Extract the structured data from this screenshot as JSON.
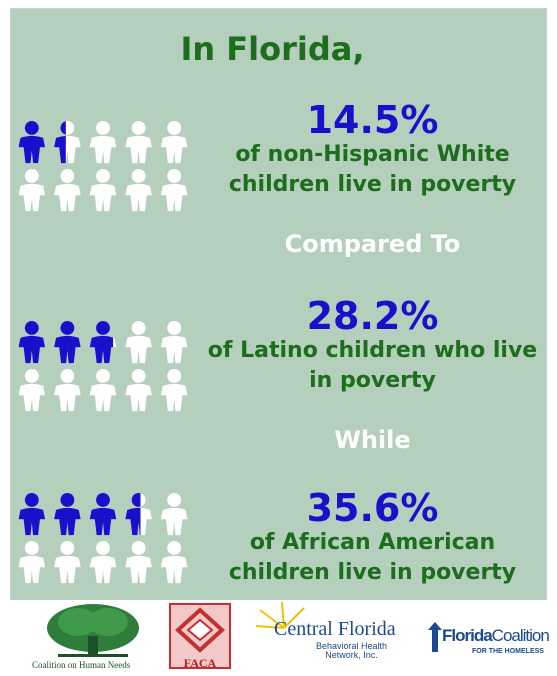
{
  "header": {
    "title": "In Florida,"
  },
  "stats": [
    {
      "percent": "14.5%",
      "desc_line1": "of non-Hispanic White",
      "desc_line2": "children live in poverty",
      "filled_fraction": 0.145
    },
    {
      "percent": "28.2%",
      "desc_line1": "of Latino children who live",
      "desc_line2": "in poverty",
      "filled_fraction": 0.282
    },
    {
      "percent": "35.6%",
      "desc_line1": "of African American",
      "desc_line2": "children live in poverty",
      "filled_fraction": 0.356
    }
  ],
  "connectors": {
    "first": "Compared To",
    "second": "While"
  },
  "logos": {
    "chn": "Coalition on Human Needs",
    "faca": "FACA",
    "cf_title": "Central Florida",
    "cf_sub1": "Behavioral Health",
    "cf_sub2": "Network, Inc.",
    "fch_title1": "Florida",
    "fch_title2": "Coalition",
    "fch_sub": "FOR THE HOMELESS"
  },
  "colors": {
    "background": "#b5cfbd",
    "accent_green": "#1c6d1c",
    "accent_blue": "#1a10cc",
    "icon_empty": "#ffffff"
  }
}
